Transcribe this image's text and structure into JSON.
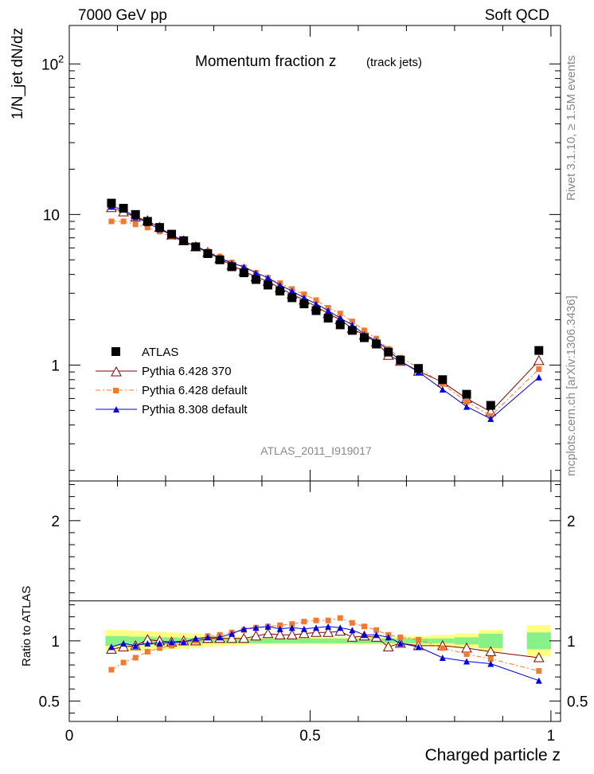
{
  "header": {
    "left": "7000 GeV pp",
    "right": "Soft QCD",
    "title": "Momentum fraction z",
    "title_suffix": "(track jets)",
    "watermark": "ATLAS_2011_I919017",
    "side_label_top": "Rivet 3.1.10, ≥ 1.5M events",
    "side_label_bottom": "mcplots.cern.ch [arXiv:1306.3436]"
  },
  "axes": {
    "ylabel_main": "1/N_jet dN/dz",
    "ylabel_ratio": "Ratio to ATLAS",
    "xlabel": "Charged particle z"
  },
  "legend": [
    {
      "key": "data",
      "label": "ATLAS"
    },
    {
      "key": "p6_370",
      "label": "Pythia 6.428 370"
    },
    {
      "key": "p6_def",
      "label": "Pythia 6.428 default"
    },
    {
      "key": "p8_def",
      "label": "Pythia 8.308 default"
    }
  ],
  "chart_data": {
    "type": "scatter",
    "title": "Momentum fraction z (track jets)",
    "xlabel": "Charged particle z",
    "ylabel": "1/N_jet dN/dz",
    "xlim": [
      0,
      1.02
    ],
    "ylim": [
      0.17,
      180
    ],
    "y_scale": "log",
    "ratio_ylabel": "Ratio to ATLAS",
    "ratio_ylim": [
      0.33,
      2.33
    ],
    "x": [
      0.0875,
      0.1125,
      0.1375,
      0.1625,
      0.1875,
      0.2125,
      0.2375,
      0.2625,
      0.2875,
      0.3125,
      0.3375,
      0.3625,
      0.3875,
      0.4125,
      0.4375,
      0.4625,
      0.4875,
      0.5125,
      0.5375,
      0.5625,
      0.5875,
      0.6125,
      0.6375,
      0.6625,
      0.6875,
      0.725,
      0.775,
      0.825,
      0.875,
      0.975
    ],
    "series": [
      {
        "name": "ATLAS",
        "color": "#000000",
        "marker": "square",
        "values": [
          11.9,
          11.0,
          10.0,
          9.0,
          8.2,
          7.4,
          6.7,
          6.1,
          5.5,
          5.0,
          4.5,
          4.1,
          3.7,
          3.4,
          3.1,
          2.8,
          2.55,
          2.3,
          2.05,
          1.85,
          1.7,
          1.52,
          1.38,
          1.22,
          1.08,
          0.95,
          0.8,
          0.64,
          0.54,
          1.25
        ]
      },
      {
        "name": "Pythia 6.428 370",
        "color": "#800000",
        "marker": "open-triangle",
        "values": [
          11.1,
          10.4,
          9.6,
          9.1,
          8.2,
          7.3,
          6.7,
          6.1,
          5.6,
          5.1,
          4.6,
          4.2,
          3.85,
          3.6,
          3.25,
          2.95,
          2.7,
          2.45,
          2.2,
          2.0,
          1.75,
          1.58,
          1.42,
          1.16,
          1.06,
          0.91,
          0.77,
          0.6,
          0.49,
          1.07
        ]
      },
      {
        "name": "Pythia 6.428 default",
        "color": "#f07a30",
        "marker": "square-small",
        "values": [
          9.0,
          9.0,
          8.6,
          8.2,
          7.7,
          7.1,
          6.6,
          6.1,
          5.7,
          5.25,
          4.8,
          4.45,
          4.1,
          3.8,
          3.5,
          3.2,
          2.95,
          2.7,
          2.4,
          2.2,
          1.95,
          1.7,
          1.5,
          1.28,
          1.12,
          0.96,
          0.75,
          0.57,
          0.46,
          0.94
        ]
      },
      {
        "name": "Pythia 8.308 default",
        "color": "#0000e0",
        "marker": "triangle",
        "values": [
          11.3,
          10.8,
          9.6,
          8.8,
          8.0,
          7.3,
          6.6,
          6.2,
          5.65,
          5.15,
          4.75,
          4.5,
          4.1,
          3.8,
          3.4,
          3.1,
          2.8,
          2.55,
          2.3,
          2.05,
          1.85,
          1.6,
          1.45,
          1.26,
          1.06,
          0.9,
          0.69,
          0.53,
          0.44,
          0.83
        ]
      }
    ],
    "ratio_series": [
      {
        "name": "Pythia 6.428 370",
        "values": [
          0.93,
          0.95,
          0.96,
          1.01,
          1.0,
          0.99,
          1.0,
          1.0,
          1.02,
          1.02,
          1.02,
          1.02,
          1.04,
          1.06,
          1.05,
          1.05,
          1.06,
          1.07,
          1.07,
          1.08,
          1.03,
          1.04,
          1.03,
          0.95,
          0.98,
          0.96,
          0.96,
          0.94,
          0.91,
          0.86
        ]
      },
      {
        "name": "Pythia 6.428 default",
        "values": [
          0.76,
          0.82,
          0.86,
          0.91,
          0.94,
          0.96,
          0.99,
          1.0,
          1.04,
          1.05,
          1.07,
          1.09,
          1.11,
          1.12,
          1.13,
          1.14,
          1.16,
          1.17,
          1.17,
          1.19,
          1.15,
          1.12,
          1.09,
          1.05,
          1.03,
          1.01,
          0.94,
          0.89,
          0.85,
          0.75
        ]
      },
      {
        "name": "Pythia 8.308 default",
        "values": [
          0.95,
          0.98,
          0.96,
          0.98,
          0.98,
          0.99,
          0.99,
          1.02,
          1.03,
          1.03,
          1.06,
          1.1,
          1.11,
          1.12,
          1.1,
          1.11,
          1.1,
          1.11,
          1.12,
          1.11,
          1.09,
          1.05,
          1.05,
          1.03,
          0.98,
          0.95,
          0.86,
          0.83,
          0.81,
          0.67
        ]
      }
    ],
    "ratio_bands": {
      "x_edges": [
        0.075,
        0.1,
        0.125,
        0.15,
        0.175,
        0.2,
        0.225,
        0.25,
        0.275,
        0.3,
        0.325,
        0.35,
        0.375,
        0.4,
        0.425,
        0.45,
        0.475,
        0.5,
        0.525,
        0.55,
        0.575,
        0.6,
        0.625,
        0.65,
        0.675,
        0.7,
        0.75,
        0.8,
        0.85,
        0.9,
        0.95,
        1.0
      ],
      "stat": [
        0.04,
        0.04,
        0.035,
        0.035,
        0.03,
        0.03,
        0.025,
        0.025,
        0.02,
        0.02,
        0.02,
        0.02,
        0.02,
        0.02,
        0.02,
        0.02,
        0.02,
        0.02,
        0.02,
        0.02,
        0.02,
        0.02,
        0.02,
        0.02,
        0.02,
        0.02,
        0.02,
        0.03,
        0.06,
        null,
        0.07
      ],
      "total": [
        0.09,
        0.09,
        0.085,
        0.08,
        0.075,
        0.07,
        0.065,
        0.06,
        0.05,
        0.045,
        0.04,
        0.035,
        0.03,
        0.03,
        0.03,
        0.03,
        0.03,
        0.03,
        0.03,
        0.03,
        0.03,
        0.03,
        0.03,
        0.035,
        0.035,
        0.04,
        0.05,
        0.06,
        0.09,
        null,
        0.13
      ]
    },
    "grid": false,
    "legend_position": "bottom-left"
  }
}
